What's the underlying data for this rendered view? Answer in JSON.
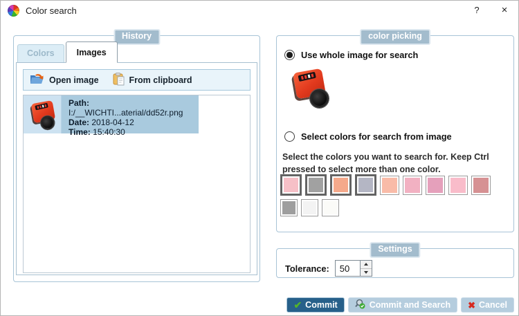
{
  "window": {
    "title": "Color search",
    "help_label": "?",
    "close_label": "×"
  },
  "history": {
    "label": "History",
    "tabs": {
      "colors": "Colors",
      "images": "Images"
    },
    "toolbar": {
      "open_image": "Open image",
      "from_clipboard": "From clipboard"
    },
    "item": {
      "path_label": "Path:",
      "path_value": "I:/__WICHTI...aterial/dd52r.png",
      "date_label": "Date:",
      "date_value": "2018-04-12",
      "time_label": "Time:",
      "time_value": "15:40:30"
    }
  },
  "color_picking": {
    "label": "color picking",
    "radio_whole_label": "Use whole image for search",
    "radio_whole_checked": true,
    "radio_select_label": "Select colors for search from image",
    "radio_select_checked": false,
    "instruction": "Select the colors you want to search for. Keep Ctrl pressed to select more than one color.",
    "swatches_row1": [
      {
        "color": "#f6c0c7",
        "selected": true
      },
      {
        "color": "#a1a1a1",
        "selected": true
      },
      {
        "color": "#f5a98b",
        "selected": true
      },
      {
        "color": "#b4b6c4",
        "selected": true
      },
      {
        "color": "#f9bba8",
        "selected": false
      },
      {
        "color": "#f2b1c2",
        "selected": false
      },
      {
        "color": "#e5a0bb",
        "selected": false
      },
      {
        "color": "#f9bcca",
        "selected": false
      },
      {
        "color": "#d69193",
        "selected": false
      }
    ],
    "swatches_row2": [
      {
        "color": "#9e9e9e",
        "selected": false
      },
      {
        "color": "#f3f3f3",
        "selected": false
      },
      {
        "color": "#fbfbf8",
        "selected": false
      }
    ]
  },
  "settings": {
    "label": "Settings",
    "tolerance_label": "Tolerance:",
    "tolerance_value": "50"
  },
  "actions": {
    "commit": "Commit",
    "commit_and_search": "Commit and Search",
    "cancel": "Cancel"
  },
  "theme": {
    "group_label_bg": "#a3bccd",
    "selected_item_bg": "#a9cade",
    "toolbar_bg": "#e9f4fa",
    "primary_button_bg": "#27608a",
    "light_button_bg": "#b5cdde",
    "check_green": "#54b428",
    "cancel_red": "#d6281e"
  }
}
